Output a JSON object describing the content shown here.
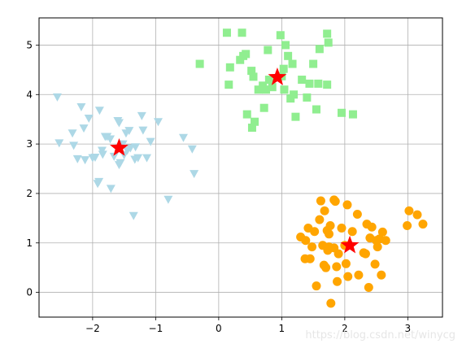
{
  "chart_data": {
    "type": "scatter",
    "xlim": [
      -2.85,
      3.55
    ],
    "ylim": [
      -0.5,
      5.55
    ],
    "xticks": [
      -2,
      -1,
      0,
      1,
      2,
      3
    ],
    "yticks": [
      0,
      1,
      2,
      3,
      4,
      5
    ],
    "xtick_labels": [
      "−2",
      "−1",
      "0",
      "1",
      "2",
      "3"
    ],
    "ytick_labels": [
      "0",
      "1",
      "2",
      "3",
      "4",
      "5"
    ],
    "grid": true,
    "series": [
      {
        "marker": "triangle-down",
        "color": "#add8e6",
        "points": [
          [
            -2.56,
            3.95
          ],
          [
            -2.53,
            3.02
          ],
          [
            -2.32,
            3.22
          ],
          [
            -2.3,
            2.97
          ],
          [
            -2.24,
            2.7
          ],
          [
            -2.18,
            3.75
          ],
          [
            -2.14,
            3.32
          ],
          [
            -2.12,
            2.68
          ],
          [
            -2.06,
            3.52
          ],
          [
            -2.0,
            2.72
          ],
          [
            -1.96,
            2.73
          ],
          [
            -1.92,
            2.2
          ],
          [
            -1.9,
            2.24
          ],
          [
            -1.89,
            3.68
          ],
          [
            -1.85,
            2.87
          ],
          [
            -1.84,
            2.79
          ],
          [
            -1.8,
            3.15
          ],
          [
            -1.77,
            3.15
          ],
          [
            -1.72,
            3.1
          ],
          [
            -1.71,
            2.1
          ],
          [
            -1.66,
            2.75
          ],
          [
            -1.6,
            3.47
          ],
          [
            -1.58,
            3.43
          ],
          [
            -1.58,
            2.58
          ],
          [
            -1.56,
            2.62
          ],
          [
            -1.52,
            3.0
          ],
          [
            -1.5,
            2.78
          ],
          [
            -1.47,
            3.22
          ],
          [
            -1.45,
            2.87
          ],
          [
            -1.42,
            3.27
          ],
          [
            -1.4,
            2.92
          ],
          [
            -1.35,
            1.55
          ],
          [
            -1.33,
            2.69
          ],
          [
            -1.32,
            2.94
          ],
          [
            -1.28,
            2.72
          ],
          [
            -1.22,
            3.57
          ],
          [
            -1.2,
            3.28
          ],
          [
            -1.14,
            2.72
          ],
          [
            -1.08,
            3.05
          ],
          [
            -0.96,
            3.45
          ],
          [
            -0.8,
            1.88
          ],
          [
            -0.56,
            3.13
          ],
          [
            -0.42,
            2.9
          ],
          [
            -0.39,
            2.4
          ]
        ]
      },
      {
        "marker": "square",
        "color": "#90ee90",
        "points": [
          [
            -0.3,
            4.62
          ],
          [
            0.13,
            5.25
          ],
          [
            0.16,
            4.2
          ],
          [
            0.18,
            4.55
          ],
          [
            0.34,
            4.7
          ],
          [
            0.37,
            5.25
          ],
          [
            0.39,
            4.78
          ],
          [
            0.43,
            4.82
          ],
          [
            0.45,
            3.6
          ],
          [
            0.52,
            4.48
          ],
          [
            0.53,
            3.33
          ],
          [
            0.55,
            4.36
          ],
          [
            0.57,
            3.45
          ],
          [
            0.63,
            4.1
          ],
          [
            0.7,
            4.18
          ],
          [
            0.72,
            3.73
          ],
          [
            0.75,
            4.1
          ],
          [
            0.78,
            4.9
          ],
          [
            0.8,
            4.3
          ],
          [
            0.85,
            4.15
          ],
          [
            0.98,
            5.2
          ],
          [
            1.0,
            4.37
          ],
          [
            1.03,
            4.52
          ],
          [
            1.04,
            4.1
          ],
          [
            1.06,
            5.0
          ],
          [
            1.1,
            4.78
          ],
          [
            1.14,
            3.92
          ],
          [
            1.17,
            4.62
          ],
          [
            1.19,
            4.0
          ],
          [
            1.22,
            3.55
          ],
          [
            1.32,
            4.3
          ],
          [
            1.4,
            3.94
          ],
          [
            1.44,
            4.22
          ],
          [
            1.5,
            4.62
          ],
          [
            1.55,
            3.7
          ],
          [
            1.58,
            4.22
          ],
          [
            1.6,
            4.92
          ],
          [
            1.72,
            4.2
          ],
          [
            1.72,
            5.23
          ],
          [
            1.74,
            5.05
          ],
          [
            1.95,
            3.63
          ],
          [
            2.13,
            3.6
          ]
        ]
      },
      {
        "marker": "circle",
        "color": "#ffa500",
        "points": [
          [
            1.3,
            1.12
          ],
          [
            1.37,
            0.68
          ],
          [
            1.38,
            1.05
          ],
          [
            1.42,
            1.3
          ],
          [
            1.45,
            0.68
          ],
          [
            1.48,
            0.92
          ],
          [
            1.52,
            1.23
          ],
          [
            1.55,
            0.13
          ],
          [
            1.6,
            1.47
          ],
          [
            1.62,
            1.85
          ],
          [
            1.65,
            0.95
          ],
          [
            1.67,
            0.55
          ],
          [
            1.68,
            1.65
          ],
          [
            1.7,
            0.5
          ],
          [
            1.72,
            1.25
          ],
          [
            1.73,
            0.85
          ],
          [
            1.75,
            0.92
          ],
          [
            1.75,
            1.18
          ],
          [
            1.77,
            1.35
          ],
          [
            1.78,
            -0.22
          ],
          [
            1.83,
            1.87
          ],
          [
            1.83,
            0.9
          ],
          [
            1.85,
            1.84
          ],
          [
            1.87,
            0.52
          ],
          [
            1.88,
            0.22
          ],
          [
            1.9,
            0.78
          ],
          [
            1.95,
            1.3
          ],
          [
            2.0,
            0.95
          ],
          [
            2.02,
            0.58
          ],
          [
            2.04,
            1.77
          ],
          [
            2.05,
            0.32
          ],
          [
            2.12,
            1.23
          ],
          [
            2.2,
            1.58
          ],
          [
            2.22,
            0.35
          ],
          [
            2.3,
            0.8
          ],
          [
            2.33,
            0.78
          ],
          [
            2.35,
            1.38
          ],
          [
            2.38,
            0.1
          ],
          [
            2.4,
            1.1
          ],
          [
            2.43,
            1.32
          ],
          [
            2.48,
            0.57
          ],
          [
            2.5,
            1.05
          ],
          [
            2.52,
            0.92
          ],
          [
            2.55,
            1.08
          ],
          [
            2.58,
            0.35
          ],
          [
            2.6,
            1.22
          ],
          [
            2.65,
            1.05
          ],
          [
            2.99,
            1.35
          ],
          [
            3.02,
            1.65
          ],
          [
            3.15,
            1.57
          ],
          [
            3.24,
            1.38
          ]
        ]
      },
      {
        "marker": "star",
        "color": "#ff0000",
        "points": [
          [
            -1.58,
            2.92
          ],
          [
            0.93,
            4.35
          ],
          [
            2.08,
            0.95
          ]
        ]
      }
    ]
  },
  "watermark": "https://blog.csdn.net/winycg"
}
